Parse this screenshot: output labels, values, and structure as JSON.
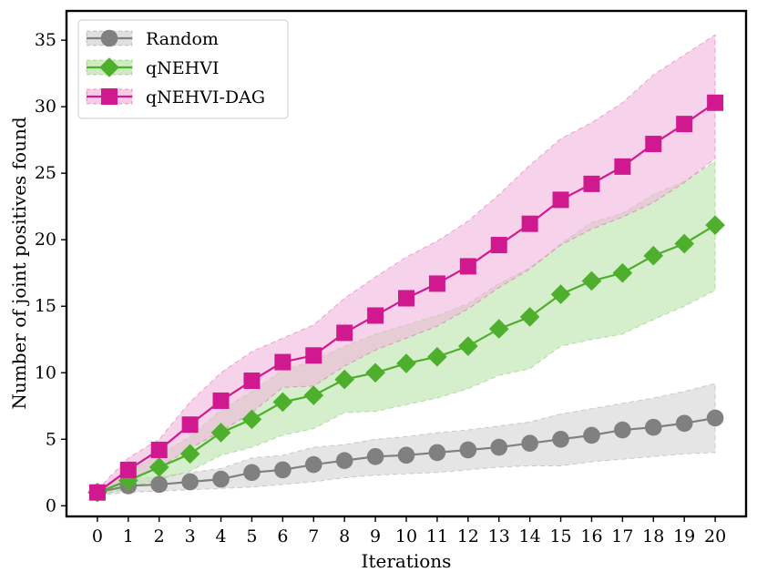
{
  "chart_data": {
    "type": "line",
    "title": "",
    "xlabel": "Iterations",
    "ylabel": "Number of joint positives found",
    "x": [
      0,
      1,
      2,
      3,
      4,
      5,
      6,
      7,
      8,
      9,
      10,
      11,
      12,
      13,
      14,
      15,
      16,
      17,
      18,
      19,
      20
    ],
    "xlim": [
      -1,
      21
    ],
    "ylim": [
      -0.8,
      37.2
    ],
    "xticks": [
      "0",
      "1",
      "2",
      "3",
      "4",
      "5",
      "6",
      "7",
      "8",
      "9",
      "10",
      "11",
      "12",
      "13",
      "14",
      "15",
      "16",
      "17",
      "18",
      "19",
      "20"
    ],
    "yticks": [
      "0",
      "5",
      "10",
      "15",
      "20",
      "25",
      "30",
      "35"
    ],
    "legend_position": "top-left",
    "grid": false,
    "series": [
      {
        "name": "Random",
        "color": "#808080",
        "fill": "#d3d3d3",
        "marker": "circle",
        "values": [
          1.0,
          1.5,
          1.6,
          1.8,
          2.0,
          2.5,
          2.7,
          3.1,
          3.4,
          3.7,
          3.8,
          4.0,
          4.2,
          4.4,
          4.7,
          5.0,
          5.3,
          5.7,
          5.9,
          6.2,
          6.6
        ],
        "lower": [
          0.8,
          1.0,
          1.1,
          1.2,
          1.3,
          1.4,
          1.6,
          1.8,
          2.1,
          2.3,
          2.4,
          2.5,
          2.7,
          2.9,
          3.0,
          3.0,
          3.3,
          3.5,
          3.7,
          3.9,
          4.0
        ],
        "upper": [
          1.2,
          2.0,
          2.2,
          2.5,
          2.8,
          3.6,
          3.8,
          4.4,
          4.6,
          5.0,
          5.2,
          5.5,
          5.7,
          6.0,
          6.3,
          6.9,
          7.3,
          7.7,
          8.1,
          8.6,
          9.2
        ]
      },
      {
        "name": "qNEHVI",
        "color": "#4daf2b",
        "fill": "#b9e3a8",
        "marker": "diamond",
        "values": [
          1.0,
          1.9,
          2.9,
          3.9,
          5.5,
          6.5,
          7.8,
          8.3,
          9.5,
          10.0,
          10.7,
          11.2,
          12.0,
          13.3,
          14.2,
          15.9,
          16.9,
          17.5,
          18.8,
          19.7,
          21.1
        ],
        "lower": [
          0.8,
          1.3,
          2.0,
          2.6,
          3.8,
          4.4,
          5.3,
          5.8,
          7.0,
          7.1,
          7.6,
          8.1,
          8.8,
          9.8,
          10.3,
          12.0,
          12.5,
          12.9,
          14.0,
          15.0,
          16.2
        ],
        "upper": [
          1.2,
          2.6,
          3.8,
          5.2,
          7.2,
          8.6,
          10.2,
          10.9,
          12.0,
          12.9,
          13.6,
          14.3,
          15.2,
          16.7,
          17.9,
          19.7,
          21.3,
          22.0,
          23.4,
          24.4,
          25.9
        ]
      },
      {
        "name": "qNEHVI-DAG",
        "color": "#d0198f",
        "fill": "#f0b6dc",
        "marker": "square",
        "values": [
          1.0,
          2.7,
          4.2,
          6.1,
          7.9,
          9.4,
          10.8,
          11.3,
          13.0,
          14.3,
          15.6,
          16.7,
          18.0,
          19.6,
          21.2,
          23.0,
          24.2,
          25.5,
          27.2,
          28.7,
          30.3
        ],
        "lower": [
          0.8,
          1.9,
          2.9,
          4.3,
          5.6,
          7.0,
          8.9,
          9.0,
          10.5,
          11.7,
          12.6,
          13.5,
          14.8,
          16.4,
          17.8,
          19.6,
          20.8,
          21.7,
          22.8,
          24.3,
          26.1
        ],
        "upper": [
          1.2,
          3.6,
          5.0,
          7.8,
          10.0,
          11.6,
          12.6,
          13.6,
          15.6,
          17.2,
          18.7,
          19.9,
          21.4,
          23.4,
          25.6,
          27.6,
          28.8,
          30.3,
          32.4,
          33.9,
          35.4
        ]
      }
    ]
  }
}
